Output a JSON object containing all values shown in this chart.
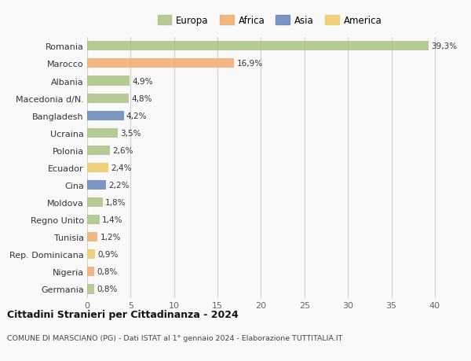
{
  "countries": [
    "Romania",
    "Marocco",
    "Albania",
    "Macedonia d/N.",
    "Bangladesh",
    "Ucraina",
    "Polonia",
    "Ecuador",
    "Cina",
    "Moldova",
    "Regno Unito",
    "Tunisia",
    "Rep. Dominicana",
    "Nigeria",
    "Germania"
  ],
  "values": [
    39.3,
    16.9,
    4.9,
    4.8,
    4.2,
    3.5,
    2.6,
    2.4,
    2.2,
    1.8,
    1.4,
    1.2,
    0.9,
    0.8,
    0.8
  ],
  "labels": [
    "39,3%",
    "16,9%",
    "4,9%",
    "4,8%",
    "4,2%",
    "3,5%",
    "2,6%",
    "2,4%",
    "2,2%",
    "1,8%",
    "1,4%",
    "1,2%",
    "0,9%",
    "0,8%",
    "0,8%"
  ],
  "colors": [
    "#a8c080",
    "#f0a868",
    "#a8c080",
    "#a8c080",
    "#6080b8",
    "#a8c080",
    "#a8c080",
    "#f0c860",
    "#6080b8",
    "#a8c080",
    "#a8c080",
    "#f0a868",
    "#f0c860",
    "#f0a868",
    "#a8c080"
  ],
  "legend": [
    {
      "label": "Europa",
      "color": "#a8c080"
    },
    {
      "label": "Africa",
      "color": "#f0a868"
    },
    {
      "label": "Asia",
      "color": "#6080b8"
    },
    {
      "label": "America",
      "color": "#f0c860"
    }
  ],
  "xlim": [
    0,
    42
  ],
  "xticks": [
    0,
    5,
    10,
    15,
    20,
    25,
    30,
    35,
    40
  ],
  "title": "Cittadini Stranieri per Cittadinanza - 2024",
  "subtitle": "COMUNE DI MARSCIANO (PG) - Dati ISTAT al 1° gennaio 2024 - Elaborazione TUTTITALIA.IT",
  "bg_color": "#f9f9f9",
  "grid_color": "#d0d0d0",
  "bar_height": 0.55
}
